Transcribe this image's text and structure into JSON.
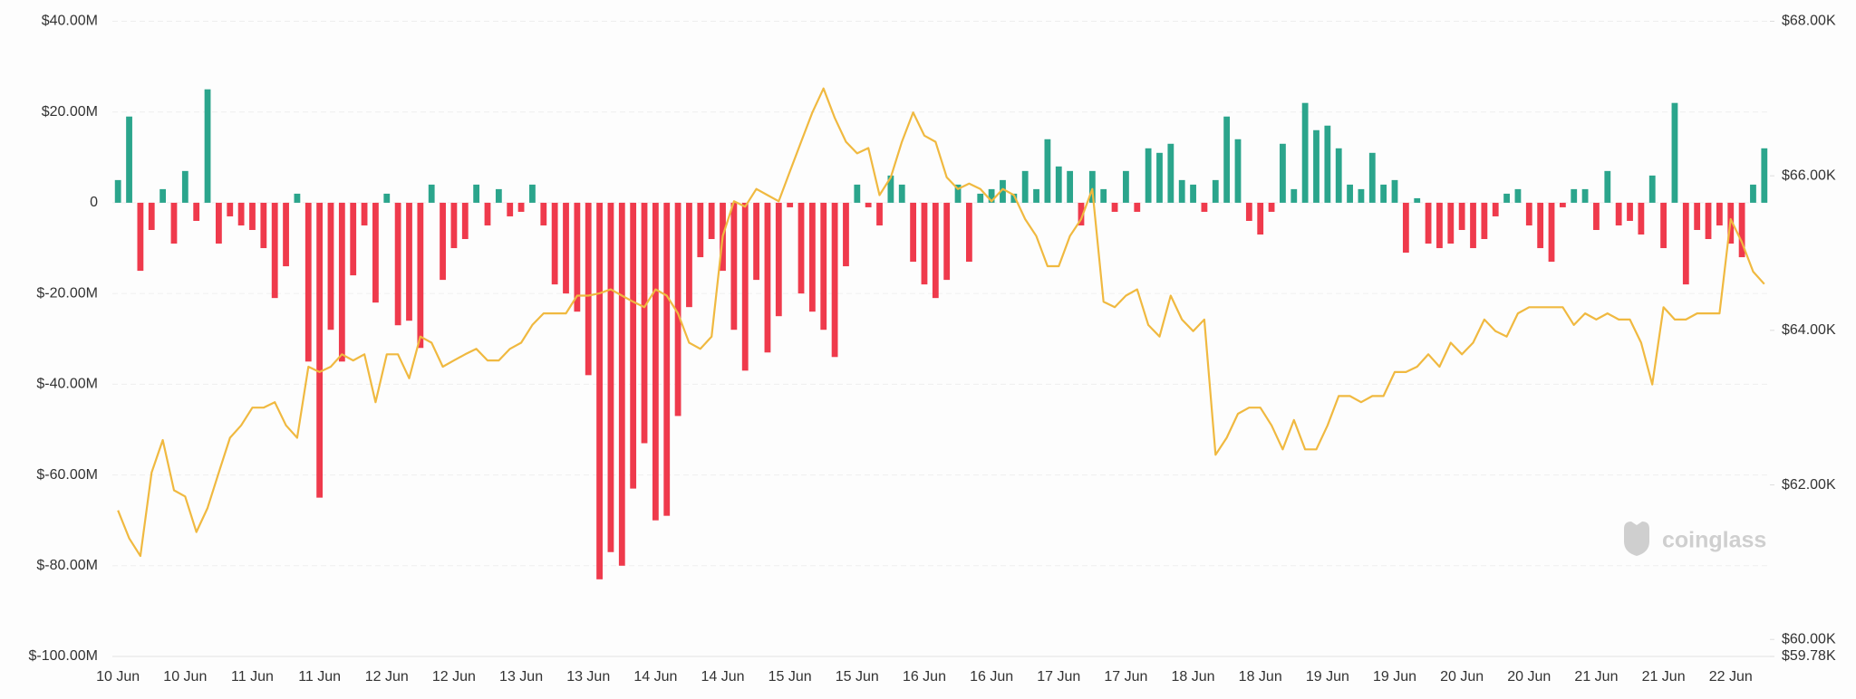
{
  "chart_data": {
    "type": "bar",
    "watermark": "coinglass",
    "categories": [
      "10 Jun",
      null,
      null,
      null,
      null,
      null,
      "10 Jun",
      null,
      null,
      null,
      null,
      null,
      "11 Jun",
      null,
      null,
      null,
      null,
      null,
      "11 Jun",
      null,
      null,
      null,
      null,
      null,
      "12 Jun",
      null,
      null,
      null,
      null,
      null,
      "12 Jun",
      null,
      null,
      null,
      null,
      null,
      "13 Jun",
      null,
      null,
      null,
      null,
      null,
      "13 Jun",
      null,
      null,
      null,
      null,
      null,
      "14 Jun",
      null,
      null,
      null,
      null,
      null,
      "14 Jun",
      null,
      null,
      null,
      null,
      null,
      "15 Jun",
      null,
      null,
      null,
      null,
      null,
      "15 Jun",
      null,
      null,
      null,
      null,
      null,
      "16 Jun",
      null,
      null,
      null,
      null,
      null,
      "16 Jun",
      null,
      null,
      null,
      null,
      null,
      "17 Jun",
      null,
      null,
      null,
      null,
      null,
      "17 Jun",
      null,
      null,
      null,
      null,
      null,
      "18 Jun",
      null,
      null,
      null,
      null,
      null,
      "18 Jun",
      null,
      null,
      null,
      null,
      null,
      "19 Jun",
      null,
      null,
      null,
      null,
      null,
      "19 Jun",
      null,
      null,
      null,
      null,
      null,
      "20 Jun",
      null,
      null,
      null,
      null,
      null,
      "20 Jun",
      null,
      null,
      null,
      null,
      null,
      "21 Jun",
      null,
      null,
      null,
      null,
      null,
      "21 Jun",
      null,
      null,
      null,
      null,
      null,
      "22 Jun",
      null,
      null,
      null
    ],
    "series": [
      {
        "type": "bar",
        "positive_color": "#2ba58c",
        "negative_color": "#ef3a4c",
        "values": [
          5,
          19,
          -15,
          -6,
          3,
          -9,
          7,
          -4,
          25,
          -9,
          -3,
          -5,
          -6,
          -10,
          -21,
          -14,
          2,
          -35,
          -65,
          -28,
          -35,
          -16,
          -5,
          -22,
          2,
          -27,
          -26,
          -32,
          4,
          -17,
          -10,
          -8,
          4,
          -5,
          3,
          -3,
          -2,
          4,
          -5,
          -18,
          -20,
          -24,
          -38,
          -83,
          -77,
          -80,
          -63,
          -53,
          -70,
          -69,
          -47,
          -23,
          -12,
          -8,
          -15,
          -28,
          -37,
          -17,
          -33,
          -25,
          -1,
          -20,
          -24,
          -28,
          -34,
          -14,
          4,
          -1,
          -5,
          6,
          4,
          -13,
          -18,
          -21,
          -17,
          4,
          -13,
          2,
          3,
          5,
          2,
          7,
          3,
          14,
          8,
          7,
          -5,
          7,
          3,
          -2,
          7,
          -2,
          12,
          11,
          13,
          5,
          4,
          -2,
          5,
          19,
          14,
          -4,
          -7,
          -2,
          13,
          3,
          22,
          16,
          17,
          12,
          4,
          3,
          11,
          4,
          5,
          -11,
          1,
          -9,
          -10,
          -9,
          -6,
          -10,
          -8,
          -3,
          2,
          3,
          -5,
          -10,
          -13,
          -1,
          3,
          3,
          -6,
          7,
          -5,
          -4,
          -7,
          6,
          -10,
          22,
          -18,
          -6,
          -8,
          -5,
          -9,
          -12,
          4,
          12
        ]
      },
      {
        "type": "line",
        "axis": "y2",
        "color": "#f0b940",
        "values": [
          61670,
          61310,
          61080,
          62160,
          62580,
          61930,
          61850,
          61390,
          61700,
          62160,
          62610,
          62770,
          63000,
          63000,
          63070,
          62770,
          62610,
          63530,
          63460,
          63530,
          63690,
          63610,
          63690,
          63070,
          63690,
          63690,
          63380,
          63920,
          63840,
          63530,
          63610,
          63690,
          63760,
          63610,
          63610,
          63760,
          63840,
          64070,
          64220,
          64220,
          64220,
          64450,
          64450,
          64480,
          64530,
          64450,
          64370,
          64300,
          64530,
          64450,
          64220,
          63840,
          63760,
          63920,
          65220,
          65670,
          65600,
          65830,
          65750,
          65670,
          66060,
          66440,
          66820,
          67130,
          66750,
          66440,
          66290,
          66360,
          65750,
          65980,
          66440,
          66820,
          66520,
          66440,
          65980,
          65830,
          65900,
          65830,
          65670,
          65830,
          65750,
          65440,
          65220,
          64830,
          64830,
          65220,
          65440,
          65830,
          64370,
          64300,
          64450,
          64530,
          64070,
          63920,
          64450,
          64140,
          63990,
          64140,
          62390,
          62610,
          62920,
          63000,
          63000,
          62770,
          62460,
          62840,
          62460,
          62460,
          62770,
          63150,
          63150,
          63070,
          63150,
          63150,
          63460,
          63460,
          63530,
          63690,
          63530,
          63840,
          63690,
          63840,
          64140,
          63990,
          63920,
          64220,
          64300,
          64300,
          64300,
          64300,
          64070,
          64220,
          64140,
          64220,
          64140,
          64140,
          63840,
          63300,
          64300,
          64140,
          64140,
          64220,
          64220,
          64220,
          65440,
          65140,
          64760,
          64600
        ]
      }
    ],
    "ylim": [
      -100,
      40
    ],
    "yticks": [
      {
        "value": -100,
        "label": "$-100.00M"
      },
      {
        "value": -80,
        "label": "$-80.00M"
      },
      {
        "value": -60,
        "label": "$-60.00M"
      },
      {
        "value": -40,
        "label": "$-40.00M"
      },
      {
        "value": -20,
        "label": "$-20.00M"
      },
      0,
      {
        "value": 20,
        "label": "$20.00M"
      },
      {
        "value": 40,
        "label": "$40.00M"
      }
    ],
    "y2lim": [
      59780,
      68000
    ],
    "y2ticks": [
      {
        "value": 59780,
        "label": "$59.78K"
      },
      {
        "value": 60000,
        "label": "$60.00K"
      },
      {
        "value": 62000,
        "label": "$62.00K"
      },
      {
        "value": 64000,
        "label": "$64.00K"
      },
      {
        "value": 66000,
        "label": "$66.00K"
      },
      {
        "value": 68000,
        "label": "$68.00K"
      }
    ],
    "grid": true
  }
}
